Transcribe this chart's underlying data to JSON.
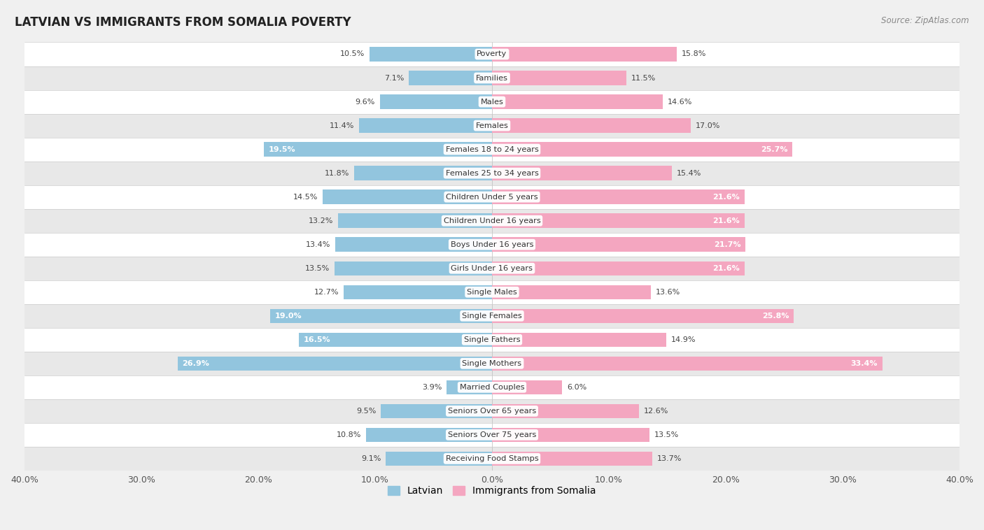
{
  "title": "LATVIAN VS IMMIGRANTS FROM SOMALIA POVERTY",
  "source": "Source: ZipAtlas.com",
  "categories": [
    "Poverty",
    "Families",
    "Males",
    "Females",
    "Females 18 to 24 years",
    "Females 25 to 34 years",
    "Children Under 5 years",
    "Children Under 16 years",
    "Boys Under 16 years",
    "Girls Under 16 years",
    "Single Males",
    "Single Females",
    "Single Fathers",
    "Single Mothers",
    "Married Couples",
    "Seniors Over 65 years",
    "Seniors Over 75 years",
    "Receiving Food Stamps"
  ],
  "latvian": [
    10.5,
    7.1,
    9.6,
    11.4,
    19.5,
    11.8,
    14.5,
    13.2,
    13.4,
    13.5,
    12.7,
    19.0,
    16.5,
    26.9,
    3.9,
    9.5,
    10.8,
    9.1
  ],
  "somalia": [
    15.8,
    11.5,
    14.6,
    17.0,
    25.7,
    15.4,
    21.6,
    21.6,
    21.7,
    21.6,
    13.6,
    25.8,
    14.9,
    33.4,
    6.0,
    12.6,
    13.5,
    13.7
  ],
  "latvian_color": "#92c5de",
  "somalia_color": "#f4a6c0",
  "background_color": "#f0f0f0",
  "row_color_even": "#ffffff",
  "row_color_odd": "#e8e8e8",
  "axis_max": 40.0,
  "bar_height": 0.6,
  "legend_latvian": "Latvian",
  "legend_somalia": "Immigrants from Somalia",
  "label_inside_threshold_lv": 15.0,
  "label_inside_threshold_so": 18.0
}
